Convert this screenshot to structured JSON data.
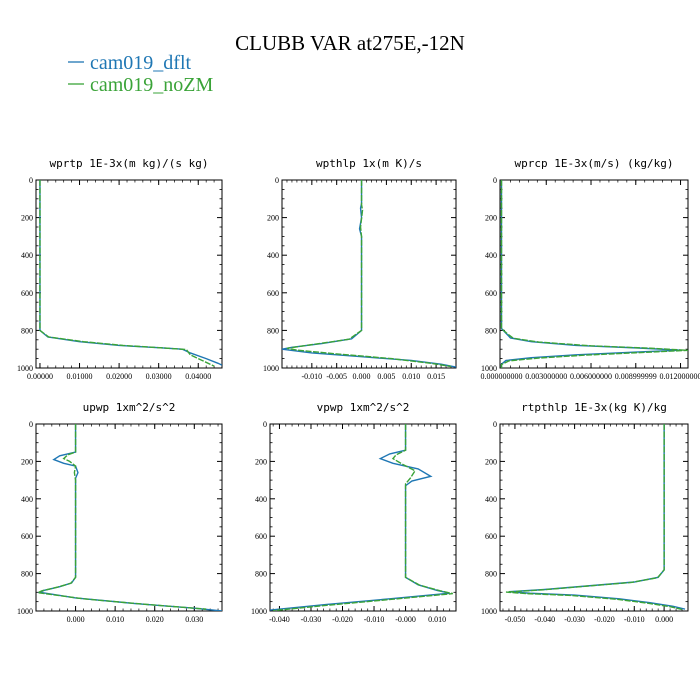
{
  "chart_data": {
    "type": "line",
    "title": "CLUBB VAR at275E,-12N",
    "legend": [
      {
        "name": "cam019_dflt",
        "color": "#1f77b4"
      },
      {
        "name": "cam019_noZM",
        "color": "#3aa338"
      }
    ],
    "yticks": [
      "0",
      "200",
      "400",
      "600",
      "800",
      "1000"
    ],
    "yrange": [
      0,
      1000
    ],
    "panels": [
      {
        "title": "wprtp  1E-3x(m kg)/(s kg)",
        "xrange": [
          -0.001,
          0.046
        ],
        "xticks": [
          {
            "v": 0,
            "label": "0.00000"
          },
          {
            "v": 0.01,
            "label": "0.01000"
          },
          {
            "v": 0.02,
            "label": "0.02000"
          },
          {
            "v": 0.03,
            "label": "0.03000"
          },
          {
            "v": 0.04,
            "label": "0.04000"
          }
        ],
        "series": [
          {
            "name": "cam019_dflt",
            "points": [
              [
                0,
                0
              ],
              [
                0,
                800
              ],
              [
                0.002,
                835
              ],
              [
                0.01,
                860
              ],
              [
                0.02,
                880
              ],
              [
                0.03,
                892
              ],
              [
                0.036,
                900
              ],
              [
                0.038,
                920
              ],
              [
                0.042,
                950
              ],
              [
                0.045,
                975
              ],
              [
                0.046,
                985
              ]
            ]
          },
          {
            "name": "cam019_noZM",
            "points": [
              [
                0,
                0
              ],
              [
                0,
                800
              ],
              [
                0.0022,
                835
              ],
              [
                0.011,
                860
              ],
              [
                0.021,
                880
              ],
              [
                0.031,
                893
              ],
              [
                0.037,
                902
              ],
              [
                0.038,
                930
              ],
              [
                0.041,
                960
              ],
              [
                0.043,
                980
              ],
              [
                0.044,
                990
              ]
            ]
          }
        ]
      },
      {
        "title": "wpthlp  1x(m K)/s",
        "xrange": [
          -0.016,
          0.019
        ],
        "xticks": [
          {
            "v": -0.01,
            "label": "-0.010"
          },
          {
            "v": -0.005,
            "label": "-0.005"
          },
          {
            "v": 0,
            "label": "0.000"
          },
          {
            "v": 0.005,
            "label": "0.005"
          },
          {
            "v": 0.01,
            "label": "0.010"
          },
          {
            "v": 0.015,
            "label": "0.015"
          }
        ],
        "series": [
          {
            "name": "cam019_dflt",
            "points": [
              [
                0,
                0
              ],
              [
                0,
                125
              ],
              [
                -0.0002,
                150
              ],
              [
                0,
                200
              ],
              [
                -0.0004,
                260
              ],
              [
                0,
                300
              ],
              [
                0,
                800
              ],
              [
                -0.002,
                845
              ],
              [
                -0.008,
                870
              ],
              [
                -0.014,
                890
              ],
              [
                -0.016,
                900
              ],
              [
                -0.01,
                920
              ],
              [
                0,
                940
              ],
              [
                0.01,
                960
              ],
              [
                0.016,
                980
              ],
              [
                0.019,
                995
              ]
            ]
          },
          {
            "name": "cam019_noZM",
            "points": [
              [
                0,
                0
              ],
              [
                0,
                130
              ],
              [
                0.0002,
                160
              ],
              [
                -0.0002,
                250
              ],
              [
                0,
                300
              ],
              [
                0,
                800
              ],
              [
                -0.0025,
                847
              ],
              [
                -0.009,
                872
              ],
              [
                -0.015,
                895
              ],
              [
                -0.013,
                905
              ],
              [
                -0.005,
                925
              ],
              [
                0.006,
                950
              ],
              [
                0.014,
                975
              ],
              [
                0.018,
                992
              ]
            ]
          }
        ]
      },
      {
        "title": "wprcp  1E-3x(m/s) (kg/kg)",
        "xrange": [
          -0.0001,
          0.0125
        ],
        "xticks": [
          {
            "v": 0,
            "label": "0.000000000"
          },
          {
            "v": 0.003,
            "label": "0.003000000"
          },
          {
            "v": 0.006,
            "label": "0.006000000"
          },
          {
            "v": 0.009,
            "label": "0.008999999"
          },
          {
            "v": 0.012,
            "label": "0.012000000"
          }
        ],
        "series": [
          {
            "name": "cam019_dflt",
            "points": [
              [
                0,
                0
              ],
              [
                0,
                790
              ],
              [
                0.0003,
                815
              ],
              [
                0.0006,
                840
              ],
              [
                0.002,
                860
              ],
              [
                0.005,
                880
              ],
              [
                0.009,
                893
              ],
              [
                0.012,
                905
              ],
              [
                0.009,
                915
              ],
              [
                0.005,
                930
              ],
              [
                0.002,
                945
              ],
              [
                0.0003,
                960
              ],
              [
                0,
                980
              ],
              [
                0,
                1000
              ]
            ]
          },
          {
            "name": "cam019_noZM",
            "points": [
              [
                0,
                0
              ],
              [
                0,
                790
              ],
              [
                0.0004,
                818
              ],
              [
                0.0008,
                842
              ],
              [
                0.0025,
                862
              ],
              [
                0.006,
                882
              ],
              [
                0.01,
                895
              ],
              [
                0.0125,
                906
              ],
              [
                0.0095,
                917
              ],
              [
                0.0055,
                932
              ],
              [
                0.0025,
                947
              ],
              [
                0.0005,
                962
              ],
              [
                0,
                982
              ],
              [
                0,
                1000
              ]
            ]
          }
        ]
      },
      {
        "title": "upwp  1xm^2/s^2",
        "xrange": [
          -0.01,
          0.037
        ],
        "xticks": [
          {
            "v": 0,
            "label": "0.000"
          },
          {
            "v": 0.01,
            "label": "0.010"
          },
          {
            "v": 0.02,
            "label": "0.020"
          },
          {
            "v": 0.03,
            "label": "0.030"
          }
        ],
        "series": [
          {
            "name": "cam019_dflt",
            "points": [
              [
                0,
                0
              ],
              [
                0,
                150
              ],
              [
                -0.004,
                170
              ],
              [
                -0.0055,
                190
              ],
              [
                -0.003,
                210
              ],
              [
                0,
                225
              ],
              [
                0.0006,
                260
              ],
              [
                0,
                290
              ],
              [
                0,
                820
              ],
              [
                -0.001,
                850
              ],
              [
                -0.004,
                870
              ],
              [
                -0.008,
                890
              ],
              [
                -0.009,
                900
              ],
              [
                0,
                930
              ],
              [
                0.015,
                960
              ],
              [
                0.03,
                985
              ],
              [
                0.037,
                1000
              ]
            ]
          },
          {
            "name": "cam019_noZM",
            "points": [
              [
                0,
                0
              ],
              [
                0,
                150
              ],
              [
                -0.002,
                165
              ],
              [
                -0.003,
                185
              ],
              [
                -0.0015,
                200
              ],
              [
                0,
                225
              ],
              [
                -0.0003,
                260
              ],
              [
                0,
                300
              ],
              [
                0,
                820
              ],
              [
                -0.0012,
                852
              ],
              [
                -0.0045,
                872
              ],
              [
                -0.0085,
                892
              ],
              [
                -0.0095,
                902
              ],
              [
                0.002,
                935
              ],
              [
                0.018,
                965
              ],
              [
                0.033,
                990
              ]
            ]
          }
        ]
      },
      {
        "title": "vpwp  1xm^2/s^2",
        "xrange": [
          -0.043,
          0.016
        ],
        "xticks": [
          {
            "v": -0.04,
            "label": "-0.040"
          },
          {
            "v": -0.03,
            "label": "-0.030"
          },
          {
            "v": -0.02,
            "label": "-0.020"
          },
          {
            "v": -0.01,
            "label": "-0.010"
          },
          {
            "v": 0,
            "label": "-0.000"
          },
          {
            "v": 0.01,
            "label": "0.010"
          }
        ],
        "series": [
          {
            "name": "cam019_dflt",
            "points": [
              [
                0,
                0
              ],
              [
                0,
                140
              ],
              [
                -0.005,
                160
              ],
              [
                -0.008,
                185
              ],
              [
                -0.004,
                210
              ],
              [
                0.004,
                240
              ],
              [
                0.008,
                280
              ],
              [
                0.002,
                305
              ],
              [
                0,
                330
              ],
              [
                0,
                820
              ],
              [
                0.004,
                860
              ],
              [
                0.01,
                890
              ],
              [
                0.014,
                905
              ],
              [
                -0.005,
                935
              ],
              [
                -0.025,
                965
              ],
              [
                -0.043,
                995
              ]
            ]
          },
          {
            "name": "cam019_noZM",
            "points": [
              [
                0,
                0
              ],
              [
                0,
                140
              ],
              [
                -0.003,
                165
              ],
              [
                -0.004,
                185
              ],
              [
                -0.001,
                215
              ],
              [
                0.003,
                250
              ],
              [
                0.0015,
                290
              ],
              [
                0,
                320
              ],
              [
                0,
                820
              ],
              [
                0.0045,
                862
              ],
              [
                0.011,
                892
              ],
              [
                0.015,
                907
              ],
              [
                -0.004,
                937
              ],
              [
                -0.024,
                968
              ],
              [
                -0.042,
                998
              ]
            ]
          }
        ]
      },
      {
        "title": "rtpthlp  1E-3x(kg K)/kg",
        "xrange": [
          -0.055,
          0.008
        ],
        "xticks": [
          {
            "v": -0.05,
            "label": "-0.050"
          },
          {
            "v": -0.04,
            "label": "-0.040"
          },
          {
            "v": -0.03,
            "label": "-0.030"
          },
          {
            "v": -0.02,
            "label": "-0.020"
          },
          {
            "v": -0.01,
            "label": "-0.010"
          },
          {
            "v": 0,
            "label": "0.000"
          }
        ],
        "series": [
          {
            "name": "cam019_dflt",
            "points": [
              [
                0,
                0
              ],
              [
                0,
                780
              ],
              [
                -0.002,
                820
              ],
              [
                -0.01,
                845
              ],
              [
                -0.025,
                865
              ],
              [
                -0.04,
                885
              ],
              [
                -0.052,
                897
              ],
              [
                -0.045,
                905
              ],
              [
                -0.03,
                915
              ],
              [
                -0.015,
                935
              ],
              [
                -0.005,
                955
              ],
              [
                0.003,
                975
              ],
              [
                0.007,
                990
              ]
            ]
          },
          {
            "name": "cam019_noZM",
            "points": [
              [
                0,
                0
              ],
              [
                0,
                780
              ],
              [
                -0.0022,
                822
              ],
              [
                -0.011,
                847
              ],
              [
                -0.026,
                867
              ],
              [
                -0.041,
                887
              ],
              [
                -0.053,
                899
              ],
              [
                -0.046,
                907
              ],
              [
                -0.031,
                917
              ],
              [
                -0.016,
                937
              ],
              [
                -0.006,
                957
              ],
              [
                0.002,
                977
              ],
              [
                0.006,
                992
              ]
            ]
          }
        ]
      }
    ]
  }
}
